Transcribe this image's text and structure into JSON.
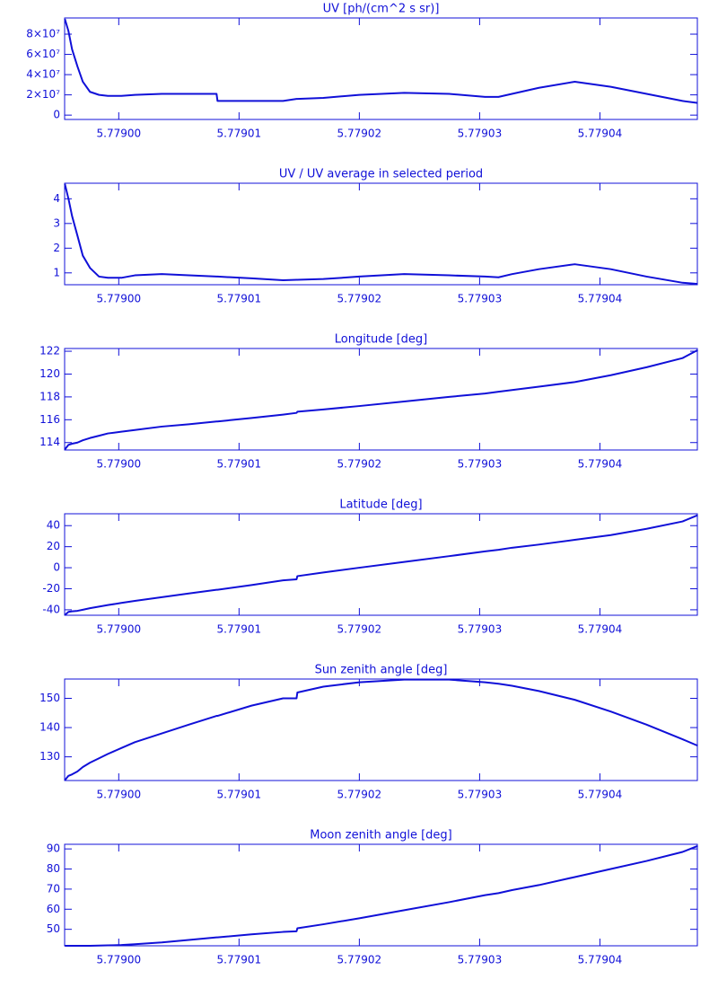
{
  "chart_data": [
    {
      "type": "line",
      "title": "UV [ph/(cm^2 s sr)]",
      "color": "#1010d8",
      "x": [
        5.77899552,
        5.77899582,
        5.77899612,
        5.77899657,
        5.77899701,
        5.77899761,
        5.77899836,
        5.7789991,
        5.77900022,
        5.77900134,
        5.77900358,
        5.77900582,
        5.77900813,
        5.77900821,
        5.77901104,
        5.77901366,
        5.77901478,
        5.77901485,
        5.77901701,
        5.77902,
        5.77902373,
        5.77902746,
        5.77903045,
        5.77903157,
        5.77903269,
        5.77903493,
        5.77903791,
        5.7790409,
        5.77904388,
        5.77904687,
        5.77904813
      ],
      "values": [
        95000000,
        83000000,
        65000000,
        48000000,
        33000000,
        23000000,
        20000000,
        19000000,
        19000000,
        20000000,
        21000000,
        21000000,
        21000000,
        14000000,
        14000000,
        14000000,
        16000000,
        16000000,
        17000000,
        20000000,
        22000000,
        21000000,
        18000000,
        18000000,
        21000000,
        27000000,
        33000000,
        28000000,
        21000000,
        14000000,
        12000000
      ],
      "xlim": [
        5.7789955,
        5.7790481
      ],
      "xticks": [
        {
          "value": 5.779,
          "label": "5.77900"
        },
        {
          "value": 5.77901,
          "label": "5.77901"
        },
        {
          "value": 5.77902,
          "label": "5.77902"
        },
        {
          "value": 5.77903,
          "label": "5.77903"
        },
        {
          "value": 5.77904,
          "label": "5.77904"
        }
      ],
      "ylim": [
        -4300000,
        96000000
      ],
      "yticks": [
        0,
        {
          "value": 20000000,
          "label": "2×10⁷"
        },
        {
          "value": 40000000,
          "label": "4×10⁷"
        },
        {
          "value": 60000000,
          "label": "6×10⁷"
        },
        {
          "value": 80000000,
          "label": "8×10⁷"
        }
      ]
    },
    {
      "type": "line",
      "title": "UV / UV average in selected period",
      "color": "#1010d8",
      "x": [
        5.77899552,
        5.77899582,
        5.77899612,
        5.77899657,
        5.77899701,
        5.77899761,
        5.77899836,
        5.7789991,
        5.77900022,
        5.77900134,
        5.77900358,
        5.77900582,
        5.77900813,
        5.77900821,
        5.77901104,
        5.77901366,
        5.77901478,
        5.77901485,
        5.77901701,
        5.77902,
        5.77902373,
        5.77902746,
        5.77903045,
        5.77903157,
        5.77903269,
        5.77903493,
        5.77903791,
        5.7790409,
        5.77904388,
        5.77904687,
        5.77904813
      ],
      "values": [
        4.6,
        4.0,
        3.3,
        2.5,
        1.7,
        1.2,
        0.85,
        0.8,
        0.8,
        0.9,
        0.95,
        0.9,
        0.85,
        0.85,
        0.78,
        0.7,
        0.72,
        0.72,
        0.75,
        0.85,
        0.95,
        0.9,
        0.85,
        0.82,
        0.95,
        1.15,
        1.35,
        1.15,
        0.85,
        0.6,
        0.55
      ],
      "xlim": [
        5.7789955,
        5.7790481
      ],
      "xticks": [
        {
          "value": 5.779,
          "label": "5.77900"
        },
        {
          "value": 5.77901,
          "label": "5.77901"
        },
        {
          "value": 5.77902,
          "label": "5.77902"
        },
        {
          "value": 5.77903,
          "label": "5.77903"
        },
        {
          "value": 5.77904,
          "label": "5.77904"
        }
      ],
      "ylim": [
        0.52,
        4.63
      ],
      "yticks": [
        1,
        2,
        3,
        4
      ]
    },
    {
      "type": "line",
      "title": "Longitude [deg]",
      "color": "#1010d8",
      "x": [
        5.77899552,
        5.77899582,
        5.77899612,
        5.77899657,
        5.77899701,
        5.77899761,
        5.77899836,
        5.7789991,
        5.77900022,
        5.77900134,
        5.77900358,
        5.77900582,
        5.77900813,
        5.77900821,
        5.77901104,
        5.77901366,
        5.77901478,
        5.77901485,
        5.77901701,
        5.77902,
        5.77902373,
        5.77902746,
        5.77903045,
        5.77903157,
        5.77903269,
        5.77903493,
        5.77903791,
        5.7790409,
        5.77904388,
        5.77904687,
        5.77904813
      ],
      "values": [
        113.4,
        113.8,
        113.9,
        114.0,
        114.2,
        114.4,
        114.6,
        114.8,
        114.95,
        115.1,
        115.4,
        115.6,
        115.85,
        115.85,
        116.15,
        116.45,
        116.6,
        116.7,
        116.9,
        117.2,
        117.6,
        118.0,
        118.3,
        118.45,
        118.6,
        118.9,
        119.3,
        119.9,
        120.6,
        121.4,
        122.1
      ],
      "xlim": [
        5.7789955,
        5.7790481
      ],
      "xticks": [
        {
          "value": 5.779,
          "label": "5.77900"
        },
        {
          "value": 5.77901,
          "label": "5.77901"
        },
        {
          "value": 5.77902,
          "label": "5.77902"
        },
        {
          "value": 5.77903,
          "label": "5.77903"
        },
        {
          "value": 5.77904,
          "label": "5.77904"
        }
      ],
      "ylim": [
        113.35,
        122.24
      ],
      "yticks": [
        114,
        116,
        118,
        120,
        122
      ]
    },
    {
      "type": "line",
      "title": "Latitude [deg]",
      "color": "#1010d8",
      "x": [
        5.77899552,
        5.77899582,
        5.77899612,
        5.77899657,
        5.77899701,
        5.77899761,
        5.77899836,
        5.7789991,
        5.77900022,
        5.77900134,
        5.77900358,
        5.77900582,
        5.77900813,
        5.77900821,
        5.77901104,
        5.77901366,
        5.77901478,
        5.77901485,
        5.77901701,
        5.77902,
        5.77902373,
        5.77902746,
        5.77903045,
        5.77903157,
        5.77903269,
        5.77903493,
        5.77903791,
        5.7790409,
        5.77904388,
        5.77904687,
        5.77904813
      ],
      "values": [
        -45,
        -42,
        -41.5,
        -41,
        -40,
        -38.5,
        -37,
        -35.5,
        -33.5,
        -31.5,
        -28,
        -24.5,
        -21,
        -21,
        -16.5,
        -12,
        -11,
        -8,
        -4.5,
        0,
        5.5,
        11,
        15.5,
        17,
        19,
        22,
        26.5,
        31,
        37,
        44,
        50
      ],
      "xlim": [
        5.7789955,
        5.7790481
      ],
      "xticks": [
        {
          "value": 5.779,
          "label": "5.77900"
        },
        {
          "value": 5.77901,
          "label": "5.77901"
        },
        {
          "value": 5.77902,
          "label": "5.77902"
        },
        {
          "value": 5.77903,
          "label": "5.77903"
        },
        {
          "value": 5.77904,
          "label": "5.77904"
        }
      ],
      "ylim": [
        -45.2,
        51.3
      ],
      "yticks": [
        -40,
        -20,
        0,
        20,
        40
      ]
    },
    {
      "type": "line",
      "title": "Sun zenith angle [deg]",
      "color": "#1010d8",
      "x": [
        5.77899552,
        5.77899582,
        5.77899612,
        5.77899657,
        5.77899701,
        5.77899761,
        5.77899836,
        5.7789991,
        5.77900022,
        5.77900134,
        5.77900358,
        5.77900582,
        5.77900813,
        5.77900821,
        5.77901104,
        5.77901366,
        5.77901478,
        5.77901485,
        5.77901701,
        5.77902,
        5.77902373,
        5.77902746,
        5.77903045,
        5.77903157,
        5.77903269,
        5.77903493,
        5.77903791,
        5.7790409,
        5.77904388,
        5.77904687,
        5.77904813
      ],
      "values": [
        122,
        123.5,
        124,
        125,
        126.5,
        128,
        129.5,
        131,
        133,
        135,
        138,
        141,
        144,
        144,
        147.5,
        150,
        150,
        152,
        154,
        155.5,
        156.4,
        156.4,
        155.5,
        155,
        154.3,
        152.5,
        149.5,
        145.5,
        141,
        136,
        133.8
      ],
      "xlim": [
        5.7789955,
        5.7790481
      ],
      "xticks": [
        {
          "value": 5.779,
          "label": "5.77900"
        },
        {
          "value": 5.77901,
          "label": "5.77901"
        },
        {
          "value": 5.77902,
          "label": "5.77902"
        },
        {
          "value": 5.77903,
          "label": "5.77903"
        },
        {
          "value": 5.77904,
          "label": "5.77904"
        }
      ],
      "ylim": [
        121.9,
        156.6
      ],
      "yticks": [
        130,
        140,
        150
      ]
    },
    {
      "type": "line",
      "title": "Moon zenith angle [deg]",
      "color": "#1010d8",
      "x": [
        5.77899552,
        5.77899582,
        5.77899612,
        5.77899657,
        5.77899701,
        5.77899761,
        5.77899836,
        5.7789991,
        5.77900022,
        5.77900134,
        5.77900358,
        5.77900582,
        5.77900813,
        5.77900821,
        5.77901104,
        5.77901366,
        5.77901478,
        5.77901485,
        5.77901701,
        5.77902,
        5.77902373,
        5.77902746,
        5.77903045,
        5.77903157,
        5.77903269,
        5.77903493,
        5.77903791,
        5.7790409,
        5.77904388,
        5.77904687,
        5.77904813
      ],
      "values": [
        41.8,
        41.8,
        41.8,
        41.8,
        41.8,
        41.8,
        41.9,
        42,
        42.2,
        42.6,
        43.5,
        44.7,
        46,
        46,
        47.5,
        48.7,
        49,
        50.5,
        52.5,
        55.5,
        59.5,
        63.5,
        67,
        68,
        69.5,
        72,
        76,
        80,
        84,
        88.5,
        91.5
      ],
      "xlim": [
        5.7789955,
        5.7790481
      ],
      "xticks": [
        {
          "value": 5.779,
          "label": "5.77900"
        },
        {
          "value": 5.77901,
          "label": "5.77901"
        },
        {
          "value": 5.77902,
          "label": "5.77902"
        },
        {
          "value": 5.77903,
          "label": "5.77903"
        },
        {
          "value": 5.77904,
          "label": "5.77904"
        }
      ],
      "ylim": [
        41.8,
        92.3
      ],
      "yticks": [
        50,
        60,
        70,
        80,
        90
      ]
    }
  ]
}
